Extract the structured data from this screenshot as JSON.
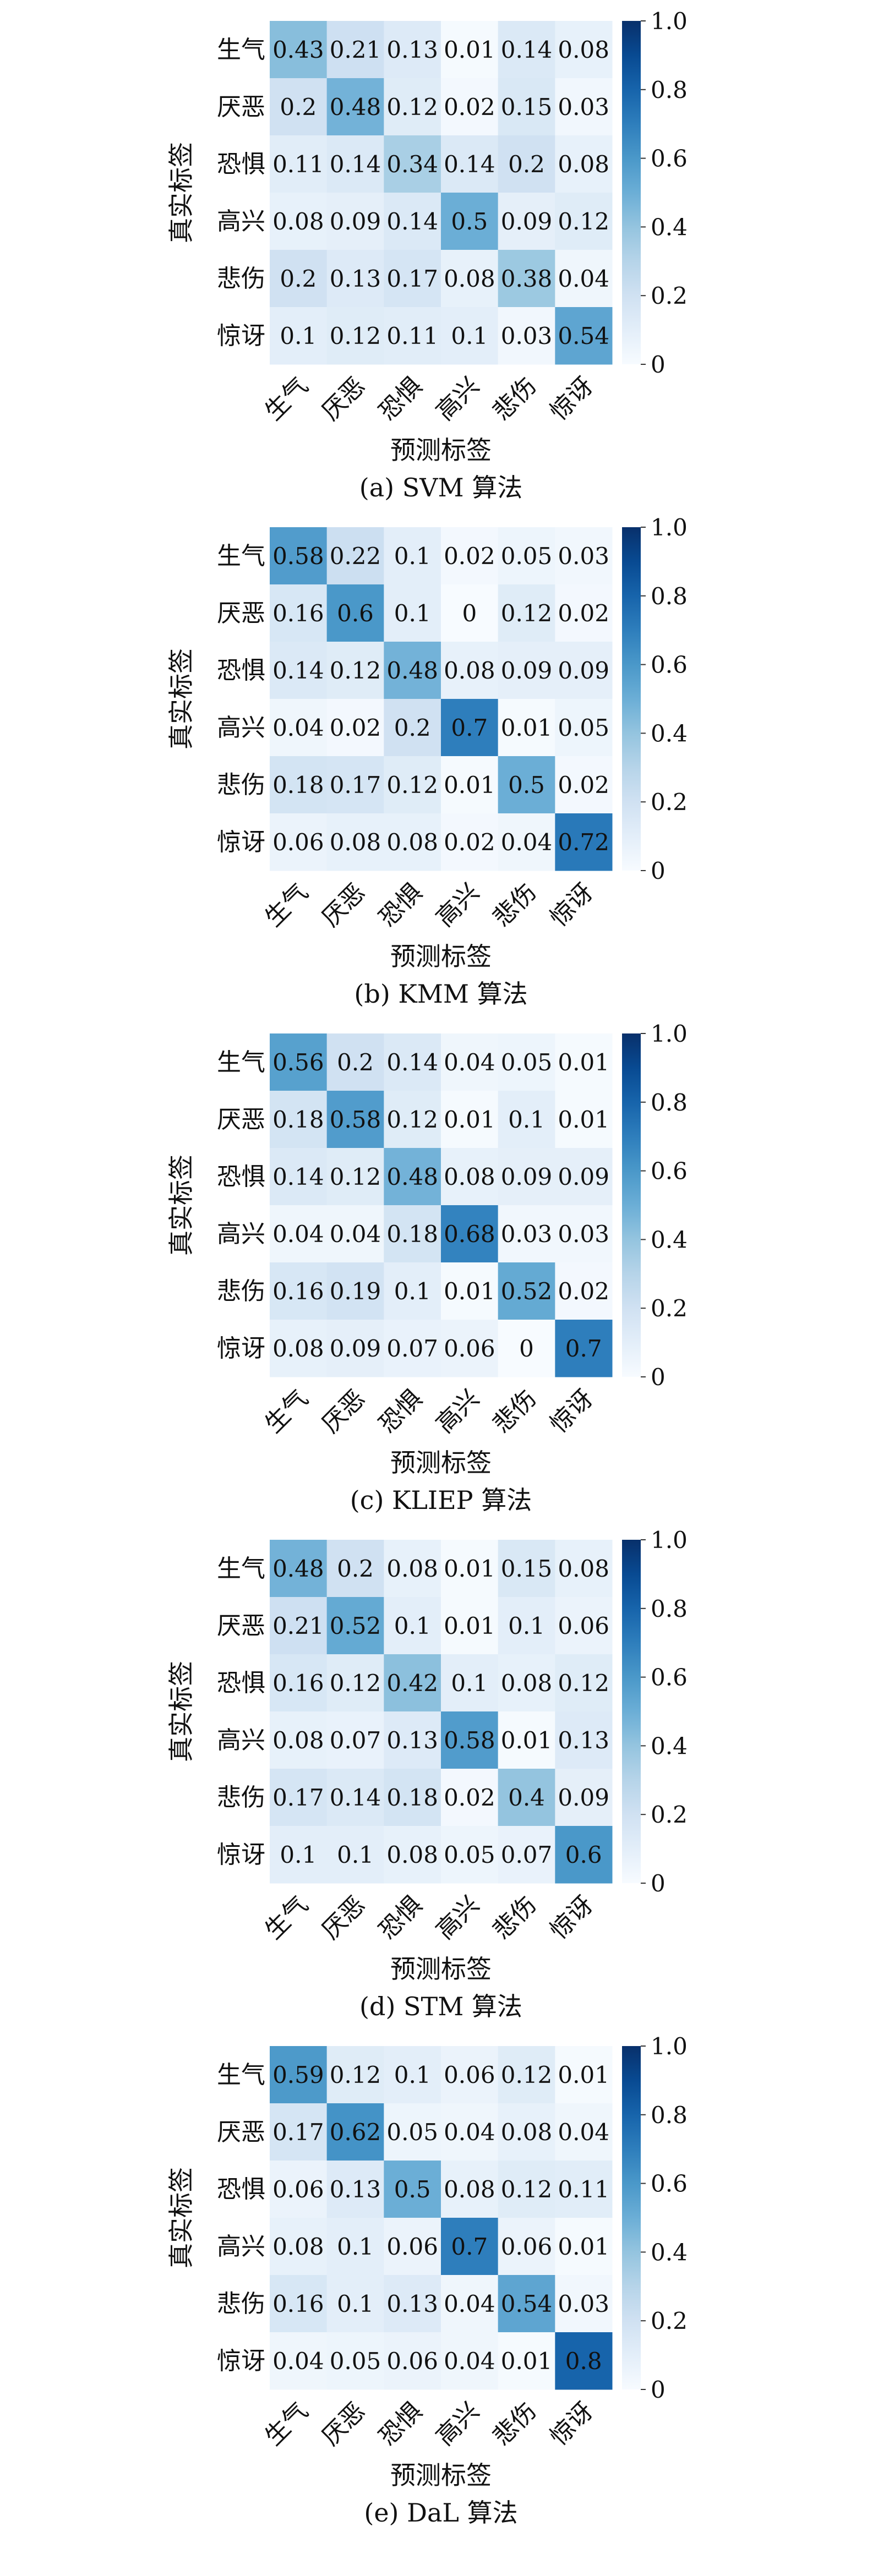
{
  "chart_data": [
    {
      "type": "heatmap",
      "caption": "(a) SVM 算法",
      "xlabel": "预测标签",
      "ylabel": "真实标签",
      "x_categories": [
        "生气",
        "厌恶",
        "恐惧",
        "高兴",
        "悲伤",
        "惊讶"
      ],
      "y_categories": [
        "生气",
        "厌恶",
        "恐惧",
        "高兴",
        "悲伤",
        "惊讶"
      ],
      "values": [
        [
          0.43,
          0.21,
          0.13,
          0.01,
          0.14,
          0.08
        ],
        [
          0.2,
          0.48,
          0.12,
          0.02,
          0.15,
          0.03
        ],
        [
          0.11,
          0.14,
          0.34,
          0.14,
          0.2,
          0.08
        ],
        [
          0.08,
          0.09,
          0.14,
          0.5,
          0.09,
          0.12
        ],
        [
          0.2,
          0.13,
          0.17,
          0.08,
          0.38,
          0.04
        ],
        [
          0.1,
          0.12,
          0.11,
          0.1,
          0.03,
          0.54
        ]
      ],
      "colorbar": {
        "range": [
          0,
          1.0
        ],
        "ticks": [
          "0",
          "0.2",
          "0.4",
          "0.6",
          "0.8",
          "1.0"
        ]
      }
    },
    {
      "type": "heatmap",
      "caption": "(b) KMM 算法",
      "xlabel": "预测标签",
      "ylabel": "真实标签",
      "x_categories": [
        "生气",
        "厌恶",
        "恐惧",
        "高兴",
        "悲伤",
        "惊讶"
      ],
      "y_categories": [
        "生气",
        "厌恶",
        "恐惧",
        "高兴",
        "悲伤",
        "惊讶"
      ],
      "values": [
        [
          0.58,
          0.22,
          0.1,
          0.02,
          0.05,
          0.03
        ],
        [
          0.16,
          0.6,
          0.1,
          0,
          0.12,
          0.02
        ],
        [
          0.14,
          0.12,
          0.48,
          0.08,
          0.09,
          0.09
        ],
        [
          0.04,
          0.02,
          0.2,
          0.7,
          0.01,
          0.05
        ],
        [
          0.18,
          0.17,
          0.12,
          0.01,
          0.5,
          0.02
        ],
        [
          0.06,
          0.08,
          0.08,
          0.02,
          0.04,
          0.72
        ]
      ],
      "colorbar": {
        "range": [
          0,
          1.0
        ],
        "ticks": [
          "0",
          "0.2",
          "0.4",
          "0.6",
          "0.8",
          "1.0"
        ]
      }
    },
    {
      "type": "heatmap",
      "caption": "(c) KLIEP 算法",
      "xlabel": "预测标签",
      "ylabel": "真实标签",
      "x_categories": [
        "生气",
        "厌恶",
        "恐惧",
        "高兴",
        "悲伤",
        "惊讶"
      ],
      "y_categories": [
        "生气",
        "厌恶",
        "恐惧",
        "高兴",
        "悲伤",
        "惊讶"
      ],
      "values": [
        [
          0.56,
          0.2,
          0.14,
          0.04,
          0.05,
          0.01
        ],
        [
          0.18,
          0.58,
          0.12,
          0.01,
          0.1,
          0.01
        ],
        [
          0.14,
          0.12,
          0.48,
          0.08,
          0.09,
          0.09
        ],
        [
          0.04,
          0.04,
          0.18,
          0.68,
          0.03,
          0.03
        ],
        [
          0.16,
          0.19,
          0.1,
          0.01,
          0.52,
          0.02
        ],
        [
          0.08,
          0.09,
          0.07,
          0.06,
          0,
          0.7
        ]
      ],
      "colorbar": {
        "range": [
          0,
          1.0
        ],
        "ticks": [
          "0",
          "0.2",
          "0.4",
          "0.6",
          "0.8",
          "1.0"
        ]
      }
    },
    {
      "type": "heatmap",
      "caption": "(d) STM 算法",
      "xlabel": "预测标签",
      "ylabel": "真实标签",
      "x_categories": [
        "生气",
        "厌恶",
        "恐惧",
        "高兴",
        "悲伤",
        "惊讶"
      ],
      "y_categories": [
        "生气",
        "厌恶",
        "恐惧",
        "高兴",
        "悲伤",
        "惊讶"
      ],
      "values": [
        [
          0.48,
          0.2,
          0.08,
          0.01,
          0.15,
          0.08
        ],
        [
          0.21,
          0.52,
          0.1,
          0.01,
          0.1,
          0.06
        ],
        [
          0.16,
          0.12,
          0.42,
          0.1,
          0.08,
          0.12
        ],
        [
          0.08,
          0.07,
          0.13,
          0.58,
          0.01,
          0.13
        ],
        [
          0.17,
          0.14,
          0.18,
          0.02,
          0.4,
          0.09
        ],
        [
          0.1,
          0.1,
          0.08,
          0.05,
          0.07,
          0.6
        ]
      ],
      "colorbar": {
        "range": [
          0,
          1.0
        ],
        "ticks": [
          "0",
          "0.2",
          "0.4",
          "0.6",
          "0.8",
          "1.0"
        ]
      }
    },
    {
      "type": "heatmap",
      "caption": "(e) DaL 算法",
      "xlabel": "预测标签",
      "ylabel": "真实标签",
      "x_categories": [
        "生气",
        "厌恶",
        "恐惧",
        "高兴",
        "悲伤",
        "惊讶"
      ],
      "y_categories": [
        "生气",
        "厌恶",
        "恐惧",
        "高兴",
        "悲伤",
        "惊讶"
      ],
      "values": [
        [
          0.59,
          0.12,
          0.1,
          0.06,
          0.12,
          0.01
        ],
        [
          0.17,
          0.62,
          0.05,
          0.04,
          0.08,
          0.04
        ],
        [
          0.06,
          0.13,
          0.5,
          0.08,
          0.12,
          0.11
        ],
        [
          0.08,
          0.1,
          0.06,
          0.7,
          0.06,
          0.01
        ],
        [
          0.16,
          0.1,
          0.13,
          0.04,
          0.54,
          0.03
        ],
        [
          0.04,
          0.05,
          0.06,
          0.04,
          0.01,
          0.8
        ]
      ],
      "colorbar": {
        "range": [
          0,
          1.0
        ],
        "ticks": [
          "0",
          "0.2",
          "0.4",
          "0.6",
          "0.8",
          "1.0"
        ]
      }
    }
  ],
  "colors": {
    "scale": [
      "#f7fbff",
      "#deebf7",
      "#c6dbef",
      "#9ecae1",
      "#6baed6",
      "#4292c6",
      "#2171b5",
      "#08519c",
      "#08306b"
    ],
    "text": "#111111",
    "background": "#ffffff"
  }
}
